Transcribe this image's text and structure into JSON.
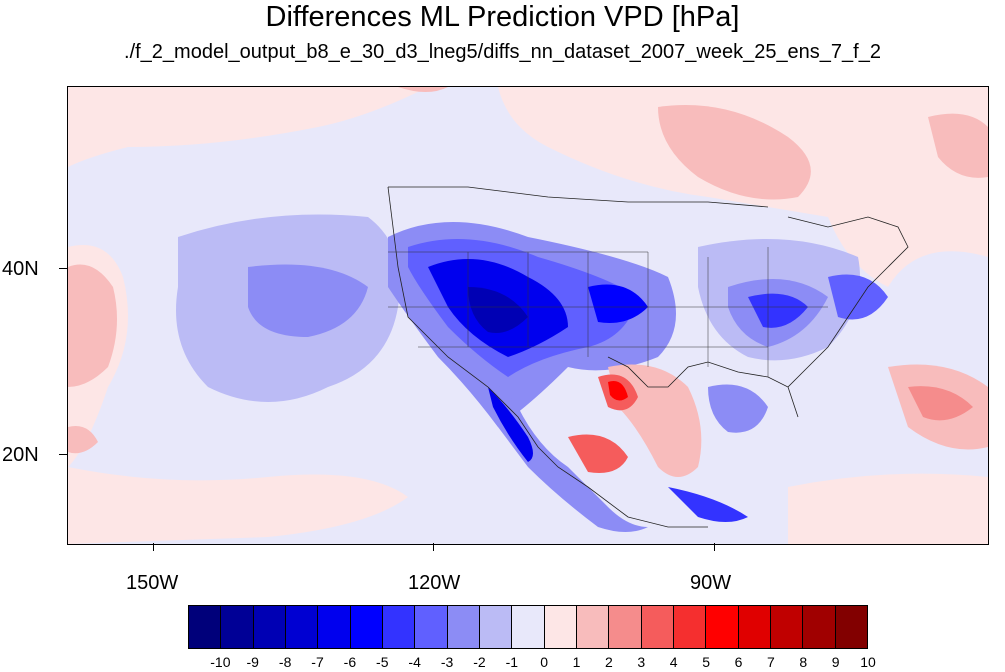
{
  "map": {
    "title": "Differences ML Prediction VPD [hPa]",
    "subtitle": "./f_2_model_output_b8_e_30_d3_lneg5/diffs_nn_dataset_2007_week_25_ens_7_f_2",
    "lon_labels": [
      "150W",
      "120W",
      "90W"
    ],
    "lat_labels": [
      "40N",
      "20N"
    ],
    "colorbar": {
      "labels": [
        "-10",
        "-9",
        "-8",
        "-7",
        "-6",
        "-5",
        "-4",
        "-3",
        "-2",
        "-1",
        "0",
        "1",
        "2",
        "3",
        "4",
        "5",
        "6",
        "7",
        "8",
        "9",
        "10"
      ],
      "colors": [
        "#00007a",
        "#000096",
        "#0000b4",
        "#0000d2",
        "#0000ee",
        "#0000ff",
        "#3333ff",
        "#6060ff",
        "#8c8cf5",
        "#bbbbf5",
        "#e8e8fa",
        "#fde6e6",
        "#f8bcbc",
        "#f58c8c",
        "#f55c5c",
        "#f52f2f",
        "#ff0000",
        "#e00000",
        "#c00000",
        "#a00000",
        "#820000"
      ]
    }
  }
}
